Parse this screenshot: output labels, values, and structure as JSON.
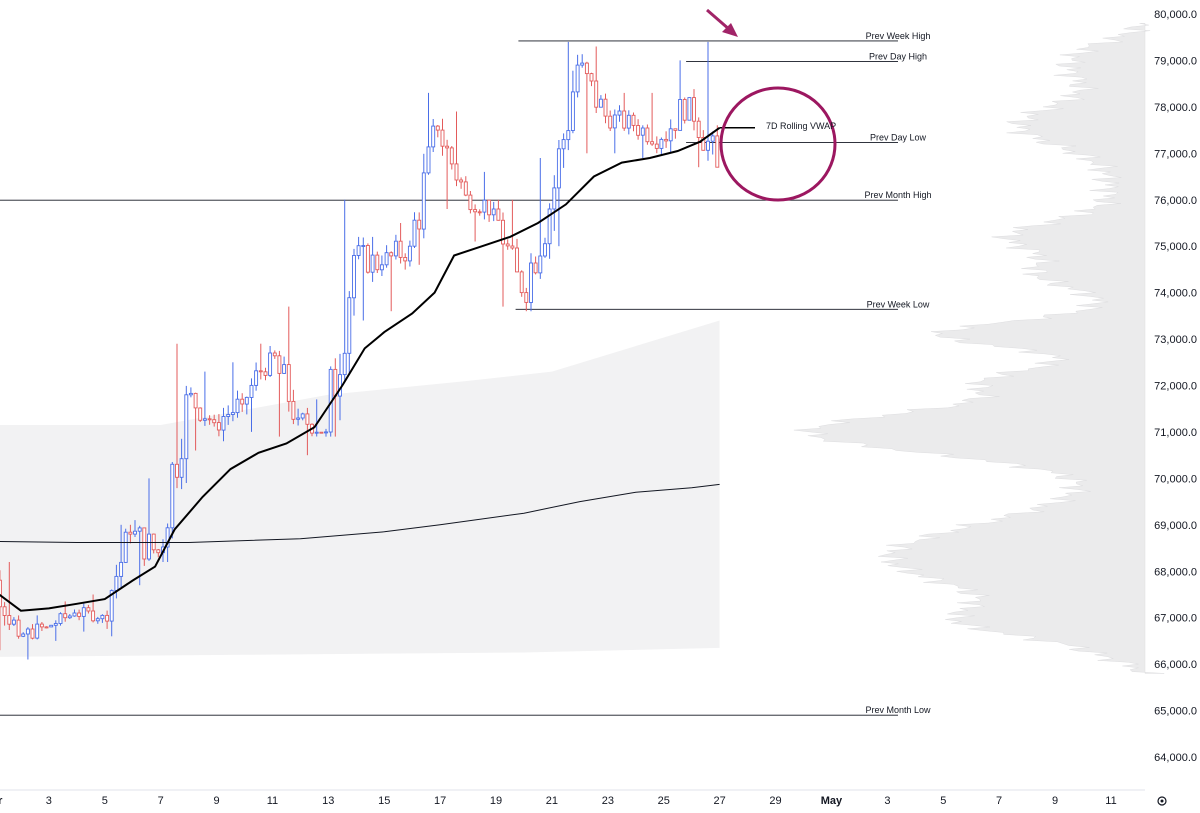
{
  "chart_data": {
    "type": "candlestick",
    "y_axis": {
      "ticks": [
        "80,000.0",
        "79,000.0",
        "78,000.0",
        "77,000.0",
        "76,000.0",
        "75,000.0",
        "74,000.0",
        "73,000.0",
        "72,000.0",
        "71,000.0",
        "70,000.0",
        "69,000.0",
        "68,000.0",
        "67,000.0",
        "66,000.0",
        "65,000.0",
        "64,000.0"
      ],
      "ylim": [
        63700,
        80300
      ]
    },
    "x_axis": {
      "ticks": [
        {
          "label": "Apr",
          "day": 1,
          "bold": true
        },
        {
          "label": "3",
          "day": 3
        },
        {
          "label": "5",
          "day": 5
        },
        {
          "label": "7",
          "day": 7
        },
        {
          "label": "9",
          "day": 9
        },
        {
          "label": "11",
          "day": 11
        },
        {
          "label": "13",
          "day": 13
        },
        {
          "label": "15",
          "day": 15
        },
        {
          "label": "17",
          "day": 17
        },
        {
          "label": "19",
          "day": 19
        },
        {
          "label": "21",
          "day": 21
        },
        {
          "label": "23",
          "day": 23
        },
        {
          "label": "25",
          "day": 25
        },
        {
          "label": "27",
          "day": 27
        },
        {
          "label": "29",
          "day": 29
        },
        {
          "label": "May",
          "day": 31,
          "bold": true
        },
        {
          "label": "3",
          "day": 33
        },
        {
          "label": "5",
          "day": 35
        },
        {
          "label": "7",
          "day": 37
        },
        {
          "label": "9",
          "day": 39
        },
        {
          "label": "11",
          "day": 41
        }
      ]
    },
    "levels": [
      {
        "label": "Prev Week High",
        "price": 79420,
        "from_day": 19.8
      },
      {
        "label": "Prev Day High",
        "price": 78980,
        "from_day": 25.8
      },
      {
        "label": "Prev Day Low",
        "price": 77230,
        "from_day": 25.8
      },
      {
        "label": "Prev Month High",
        "price": 75990,
        "from_day": 0
      },
      {
        "label": "Prev Week Low",
        "price": 73640,
        "from_day": 19.7
      },
      {
        "label": "Prev Month Low",
        "price": 64900,
        "from_day": 0
      }
    ],
    "vwap_label": "7D Rolling VWAP",
    "rolling_vwap": [
      [
        0,
        68000
      ],
      [
        1,
        67600
      ],
      [
        2,
        67150
      ],
      [
        3,
        67200
      ],
      [
        4,
        67300
      ],
      [
        5,
        67400
      ],
      [
        6,
        67800
      ],
      [
        6.8,
        68100
      ],
      [
        7.5,
        68900
      ],
      [
        8.5,
        69600
      ],
      [
        9.5,
        70200
      ],
      [
        10.5,
        70550
      ],
      [
        11.5,
        70750
      ],
      [
        12.5,
        71100
      ],
      [
        13.5,
        72000
      ],
      [
        14.3,
        72800
      ],
      [
        15,
        73150
      ],
      [
        16,
        73550
      ],
      [
        16.8,
        74000
      ],
      [
        17.5,
        74800
      ],
      [
        18.5,
        75000
      ],
      [
        19.5,
        75200
      ],
      [
        20.5,
        75500
      ],
      [
        21.5,
        75900
      ],
      [
        22.5,
        76500
      ],
      [
        23.5,
        76800
      ],
      [
        24.5,
        76900
      ],
      [
        25.5,
        77050
      ],
      [
        26.3,
        77250
      ],
      [
        27,
        77550
      ]
    ],
    "anchored_vwap": [
      [
        0,
        68650
      ],
      [
        4,
        68620
      ],
      [
        8,
        68620
      ],
      [
        12,
        68700
      ],
      [
        15,
        68850
      ],
      [
        17,
        69000
      ],
      [
        20,
        69250
      ],
      [
        22,
        69500
      ],
      [
        24,
        69700
      ],
      [
        26,
        69800
      ],
      [
        27,
        69870
      ]
    ],
    "band_upper": [
      [
        0,
        71150
      ],
      [
        7,
        71150
      ],
      [
        13,
        71800
      ],
      [
        18,
        72100
      ],
      [
        21,
        72300
      ],
      [
        27,
        73400
      ]
    ],
    "band_lower": [
      [
        0,
        66150
      ],
      [
        10,
        66200
      ],
      [
        20,
        66250
      ],
      [
        27,
        66350
      ]
    ],
    "candles_daily_ohlc": [
      [
        0.5,
        68500,
        69200,
        67700,
        68000
      ],
      [
        1.5,
        68000,
        68200,
        66300,
        66600
      ],
      [
        2.5,
        66600,
        67050,
        66100,
        66800
      ],
      [
        3.5,
        66800,
        67350,
        66500,
        67100
      ],
      [
        4.5,
        67100,
        67500,
        66700,
        67050
      ],
      [
        5.5,
        67050,
        69000,
        66600,
        68800
      ],
      [
        6.5,
        68800,
        70000,
        67700,
        68400
      ],
      [
        7.5,
        68400,
        72900,
        68200,
        71800
      ],
      [
        8.5,
        71800,
        72300,
        70600,
        71200
      ],
      [
        9.5,
        71200,
        72500,
        70800,
        71600
      ],
      [
        10.5,
        71600,
        72900,
        71000,
        72700
      ],
      [
        11.5,
        72700,
        73700,
        70900,
        71300
      ],
      [
        12.5,
        71300,
        71700,
        70500,
        71000
      ],
      [
        13.5,
        71000,
        76000,
        70900,
        74800
      ],
      [
        14.5,
        74800,
        75200,
        73400,
        74600
      ],
      [
        15.5,
        74600,
        75500,
        73600,
        75000
      ],
      [
        16.5,
        75000,
        78300,
        74600,
        77500
      ],
      [
        17.5,
        77500,
        77900,
        75800,
        76100
      ],
      [
        18.5,
        76100,
        76600,
        75100,
        75800
      ],
      [
        19.5,
        75800,
        76000,
        73700,
        74000
      ],
      [
        20.5,
        74000,
        76900,
        73600,
        75800
      ],
      [
        21.5,
        75800,
        79400,
        75000,
        78900
      ],
      [
        22.5,
        78900,
        79300,
        77000,
        77800
      ],
      [
        23.5,
        77800,
        78300,
        77000,
        77600
      ],
      [
        24.5,
        77600,
        78300,
        76900,
        77300
      ],
      [
        25.5,
        77300,
        79000,
        77000,
        78200
      ],
      [
        26.5,
        78200,
        79400,
        76700,
        76700
      ]
    ]
  }
}
